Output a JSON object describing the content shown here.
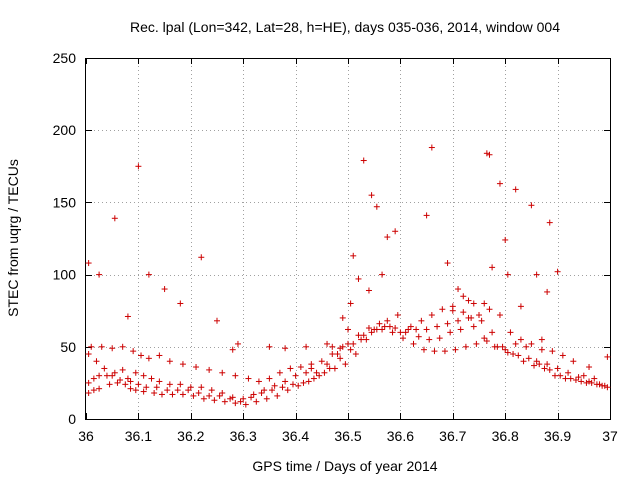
{
  "chart_data": {
    "type": "scatter",
    "title": "Rec. lpal (Lon=342, Lat=28, h=HE), days 035-036, 2014, window 004",
    "xlabel": "GPS time / Days of year 2014",
    "ylabel": "STEC from uqrg / TECUs",
    "xlim": [
      36,
      37
    ],
    "ylim": [
      0,
      250
    ],
    "xticks": [
      36,
      36.1,
      36.2,
      36.3,
      36.4,
      36.5,
      36.6,
      36.7,
      36.8,
      36.9,
      37
    ],
    "xtick_labels": [
      "36",
      "36.1",
      "36.2",
      "36.3",
      "36.4",
      "36.5",
      "36.6",
      "36.7",
      "36.8",
      "36.9",
      "37"
    ],
    "yticks": [
      0,
      50,
      100,
      150,
      200,
      250
    ],
    "ytick_labels": [
      "0",
      "50",
      "100",
      "150",
      "200",
      "250"
    ],
    "grid": true,
    "marker": "+",
    "color": "#cc0000",
    "series": [
      {
        "name": "STEC",
        "x": [
          36.005,
          36.015,
          36.025,
          36.045,
          36.06,
          36.075,
          36.085,
          36.095,
          36.11,
          36.13,
          36.145,
          36.165,
          36.185,
          36.205,
          36.225,
          36.245,
          36.265,
          36.285,
          36.305,
          36.325,
          36.345,
          36.365,
          36.385,
          36.405,
          36.425,
          36.445,
          36.465,
          36.485,
          36.505,
          36.525,
          36.545,
          36.565,
          36.585,
          36.605,
          36.625,
          36.645,
          36.665,
          36.685,
          36.705,
          36.725,
          36.745,
          36.765,
          36.785,
          36.805,
          36.825,
          36.845,
          36.865,
          36.885,
          36.905,
          36.925,
          36.945,
          36.965,
          36.985,
          36.995,
          36.005,
          36.015,
          36.025,
          36.04,
          36.055,
          36.07,
          36.085,
          36.1,
          36.115,
          36.135,
          36.155,
          36.175,
          36.195,
          36.215,
          36.235,
          36.255,
          36.275,
          36.295,
          36.315,
          36.335,
          36.355,
          36.375,
          36.395,
          36.415,
          36.435,
          36.455,
          36.475,
          36.495,
          36.515,
          36.535,
          36.555,
          36.575,
          36.595,
          36.615,
          36.635,
          36.655,
          36.675,
          36.695,
          36.715,
          36.735,
          36.755,
          36.775,
          36.795,
          36.815,
          36.835,
          36.855,
          36.875,
          36.895,
          36.915,
          36.935,
          36.955,
          36.975,
          36.99,
          36.005,
          36.02,
          36.035,
          36.05,
          36.065,
          36.08,
          36.095,
          36.11,
          36.125,
          36.14,
          36.16,
          36.18,
          36.2,
          36.22,
          36.24,
          36.26,
          36.28,
          36.3,
          36.32,
          36.34,
          36.36,
          36.38,
          36.4,
          36.42,
          36.44,
          36.46,
          36.48,
          36.5,
          36.52,
          36.54,
          36.56,
          36.58,
          36.6,
          36.62,
          36.64,
          36.66,
          36.68,
          36.7,
          36.72,
          36.74,
          36.76,
          36.78,
          36.8,
          36.82,
          36.84,
          36.86,
          36.88,
          36.9,
          36.92,
          36.94,
          36.96,
          36.98,
          36.01,
          36.03,
          36.05,
          36.07,
          36.09,
          36.105,
          36.12,
          36.14,
          36.16,
          36.185,
          36.21,
          36.235,
          36.26,
          36.285,
          36.31,
          36.33,
          36.35,
          36.37,
          36.39,
          36.41,
          36.43,
          36.45,
          36.47,
          36.49,
          36.51,
          36.53,
          36.55,
          36.57,
          36.59,
          36.61,
          36.63,
          36.65,
          36.67,
          36.69,
          36.71,
          36.73,
          36.75,
          36.77,
          36.79,
          36.81,
          36.83,
          36.85,
          36.87,
          36.89,
          36.91,
          36.93,
          36.95,
          36.97,
          36.005,
          36.025,
          36.055,
          36.08,
          36.1,
          36.12,
          36.15,
          36.18,
          36.22,
          36.25,
          36.28,
          36.29,
          36.35,
          36.38,
          36.42,
          36.43,
          36.46,
          36.47,
          36.485,
          36.49,
          36.5,
          36.505,
          36.51,
          36.52,
          36.53,
          36.54,
          36.545,
          36.555,
          36.565,
          36.575,
          36.59,
          36.65,
          36.66,
          36.69,
          36.7,
          36.71,
          36.72,
          36.73,
          36.74,
          36.76,
          36.765,
          36.77,
          36.775,
          36.79,
          36.8,
          36.805,
          36.82,
          36.83,
          36.85,
          36.86,
          36.87,
          36.88,
          36.885,
          36.9,
          36.96,
          36.995
        ],
        "y": [
          18,
          20,
          21,
          24,
          25,
          24,
          21,
          20,
          19,
          18,
          17,
          17,
          17,
          16,
          14,
          13,
          12,
          11,
          10,
          12,
          14,
          16,
          20,
          23,
          26,
          30,
          35,
          42,
          48,
          55,
          60,
          62,
          60,
          56,
          52,
          48,
          47,
          47,
          48,
          50,
          52,
          54,
          50,
          46,
          44,
          42,
          38,
          34,
          30,
          28,
          26,
          25,
          23,
          22,
          25,
          28,
          30,
          30,
          32,
          34,
          26,
          24,
          22,
          22,
          20,
          20,
          20,
          18,
          16,
          16,
          14,
          12,
          15,
          18,
          20,
          22,
          24,
          25,
          28,
          32,
          35,
          38,
          45,
          55,
          62,
          68,
          72,
          62,
          57,
          55,
          56,
          60,
          62,
          70,
          68,
          60,
          50,
          45,
          40,
          37,
          35,
          30,
          28,
          27,
          25,
          24,
          23,
          45,
          40,
          35,
          30,
          27,
          28,
          32,
          30,
          28,
          26,
          24,
          24,
          22,
          22,
          20,
          18,
          15,
          14,
          17,
          20,
          23,
          26,
          30,
          32,
          32,
          38,
          45,
          52,
          58,
          63,
          66,
          64,
          60,
          64,
          68,
          72,
          76,
          78,
          74,
          64,
          56,
          50,
          48,
          52,
          50,
          40,
          38,
          35,
          32,
          29,
          26,
          24,
          50,
          50,
          49,
          50,
          47,
          44,
          42,
          44,
          40,
          38,
          36,
          34,
          32,
          30,
          28,
          26,
          28,
          32,
          35,
          36,
          38,
          40,
          45,
          50,
          52,
          58,
          62,
          64,
          63,
          60,
          62,
          62,
          64,
          66,
          68,
          70,
          72,
          76,
          72,
          60,
          55,
          52,
          48,
          47,
          44,
          40,
          30,
          28,
          108,
          100,
          139,
          71,
          175,
          100,
          90,
          80,
          112,
          68,
          48,
          52,
          50,
          49,
          50,
          35,
          52,
          50,
          49,
          70,
          62,
          80,
          113,
          97,
          179,
          89,
          155,
          147,
          100,
          126,
          130,
          141,
          188,
          108,
          75,
          90,
          85,
          82,
          80,
          80,
          184,
          183,
          105,
          163,
          124,
          100,
          159,
          78,
          148,
          100,
          55,
          88,
          136,
          102,
          36,
          43
        ]
      }
    ]
  }
}
